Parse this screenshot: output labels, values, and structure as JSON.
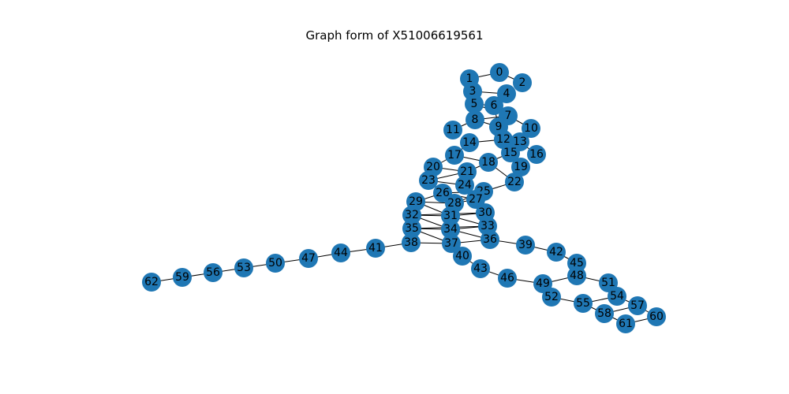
{
  "title": "Graph form of X51006619561",
  "node_color": "#1f77b4",
  "edge_color": "#000000",
  "nodes": [
    {
      "id": "0"
    },
    {
      "id": "1"
    },
    {
      "id": "2"
    },
    {
      "id": "3"
    },
    {
      "id": "4"
    },
    {
      "id": "5"
    },
    {
      "id": "6"
    },
    {
      "id": "7"
    },
    {
      "id": "8"
    },
    {
      "id": "9"
    },
    {
      "id": "10"
    },
    {
      "id": "11"
    },
    {
      "id": "12"
    },
    {
      "id": "13"
    },
    {
      "id": "14"
    },
    {
      "id": "15"
    },
    {
      "id": "16"
    },
    {
      "id": "17"
    },
    {
      "id": "18"
    },
    {
      "id": "19"
    },
    {
      "id": "20"
    },
    {
      "id": "21"
    },
    {
      "id": "22"
    },
    {
      "id": "23"
    },
    {
      "id": "24"
    },
    {
      "id": "25"
    },
    {
      "id": "26"
    },
    {
      "id": "27"
    },
    {
      "id": "28"
    },
    {
      "id": "29"
    },
    {
      "id": "30"
    },
    {
      "id": "31"
    },
    {
      "id": "32"
    },
    {
      "id": "33"
    },
    {
      "id": "34"
    },
    {
      "id": "35"
    },
    {
      "id": "36"
    },
    {
      "id": "37"
    },
    {
      "id": "38"
    },
    {
      "id": "39"
    },
    {
      "id": "40"
    },
    {
      "id": "41"
    },
    {
      "id": "42"
    },
    {
      "id": "43"
    },
    {
      "id": "44"
    },
    {
      "id": "45"
    },
    {
      "id": "46"
    },
    {
      "id": "47"
    },
    {
      "id": "48"
    },
    {
      "id": "49"
    },
    {
      "id": "50"
    },
    {
      "id": "51"
    },
    {
      "id": "52"
    },
    {
      "id": "53"
    },
    {
      "id": "54"
    },
    {
      "id": "55"
    },
    {
      "id": "56"
    },
    {
      "id": "57"
    },
    {
      "id": "58"
    },
    {
      "id": "59"
    },
    {
      "id": "60"
    },
    {
      "id": "61"
    },
    {
      "id": "62"
    }
  ],
  "edges": [
    [
      "0",
      "1"
    ],
    [
      "0",
      "2"
    ],
    [
      "1",
      "3"
    ],
    [
      "3",
      "4"
    ],
    [
      "3",
      "5"
    ],
    [
      "4",
      "6"
    ],
    [
      "5",
      "6"
    ],
    [
      "5",
      "7"
    ],
    [
      "6",
      "7"
    ],
    [
      "6",
      "9"
    ],
    [
      "7",
      "8"
    ],
    [
      "7",
      "10"
    ],
    [
      "8",
      "9"
    ],
    [
      "8",
      "11"
    ],
    [
      "9",
      "12"
    ],
    [
      "9",
      "13"
    ],
    [
      "12",
      "14"
    ],
    [
      "12",
      "15"
    ],
    [
      "13",
      "15"
    ],
    [
      "13",
      "16"
    ],
    [
      "14",
      "17"
    ],
    [
      "15",
      "18"
    ],
    [
      "15",
      "19"
    ],
    [
      "17",
      "18"
    ],
    [
      "17",
      "20"
    ],
    [
      "18",
      "21"
    ],
    [
      "18",
      "22"
    ],
    [
      "20",
      "21"
    ],
    [
      "21",
      "23"
    ],
    [
      "21",
      "24"
    ],
    [
      "22",
      "25"
    ],
    [
      "23",
      "24"
    ],
    [
      "23",
      "26"
    ],
    [
      "24",
      "27"
    ],
    [
      "25",
      "26"
    ],
    [
      "25",
      "28"
    ],
    [
      "26",
      "27"
    ],
    [
      "26",
      "29"
    ],
    [
      "27",
      "28"
    ],
    [
      "27",
      "30"
    ],
    [
      "28",
      "29"
    ],
    [
      "29",
      "31"
    ],
    [
      "30",
      "31"
    ],
    [
      "30",
      "32"
    ],
    [
      "31",
      "32"
    ],
    [
      "31",
      "33"
    ],
    [
      "32",
      "34"
    ],
    [
      "33",
      "34"
    ],
    [
      "33",
      "35"
    ],
    [
      "34",
      "35"
    ],
    [
      "34",
      "36"
    ],
    [
      "35",
      "37"
    ],
    [
      "36",
      "37"
    ],
    [
      "36",
      "39"
    ],
    [
      "37",
      "38"
    ],
    [
      "37",
      "40"
    ],
    [
      "38",
      "41"
    ],
    [
      "39",
      "42"
    ],
    [
      "40",
      "43"
    ],
    [
      "41",
      "44"
    ],
    [
      "42",
      "45"
    ],
    [
      "43",
      "46"
    ],
    [
      "44",
      "47"
    ],
    [
      "45",
      "48"
    ],
    [
      "46",
      "49"
    ],
    [
      "47",
      "50"
    ],
    [
      "48",
      "49"
    ],
    [
      "48",
      "51"
    ],
    [
      "49",
      "52"
    ],
    [
      "50",
      "53"
    ],
    [
      "51",
      "54"
    ],
    [
      "52",
      "55"
    ],
    [
      "53",
      "56"
    ],
    [
      "54",
      "55"
    ],
    [
      "54",
      "57"
    ],
    [
      "55",
      "58"
    ],
    [
      "56",
      "59"
    ],
    [
      "57",
      "58"
    ],
    [
      "57",
      "60"
    ],
    [
      "58",
      "61"
    ],
    [
      "59",
      "62"
    ],
    [
      "60",
      "61"
    ]
  ]
}
